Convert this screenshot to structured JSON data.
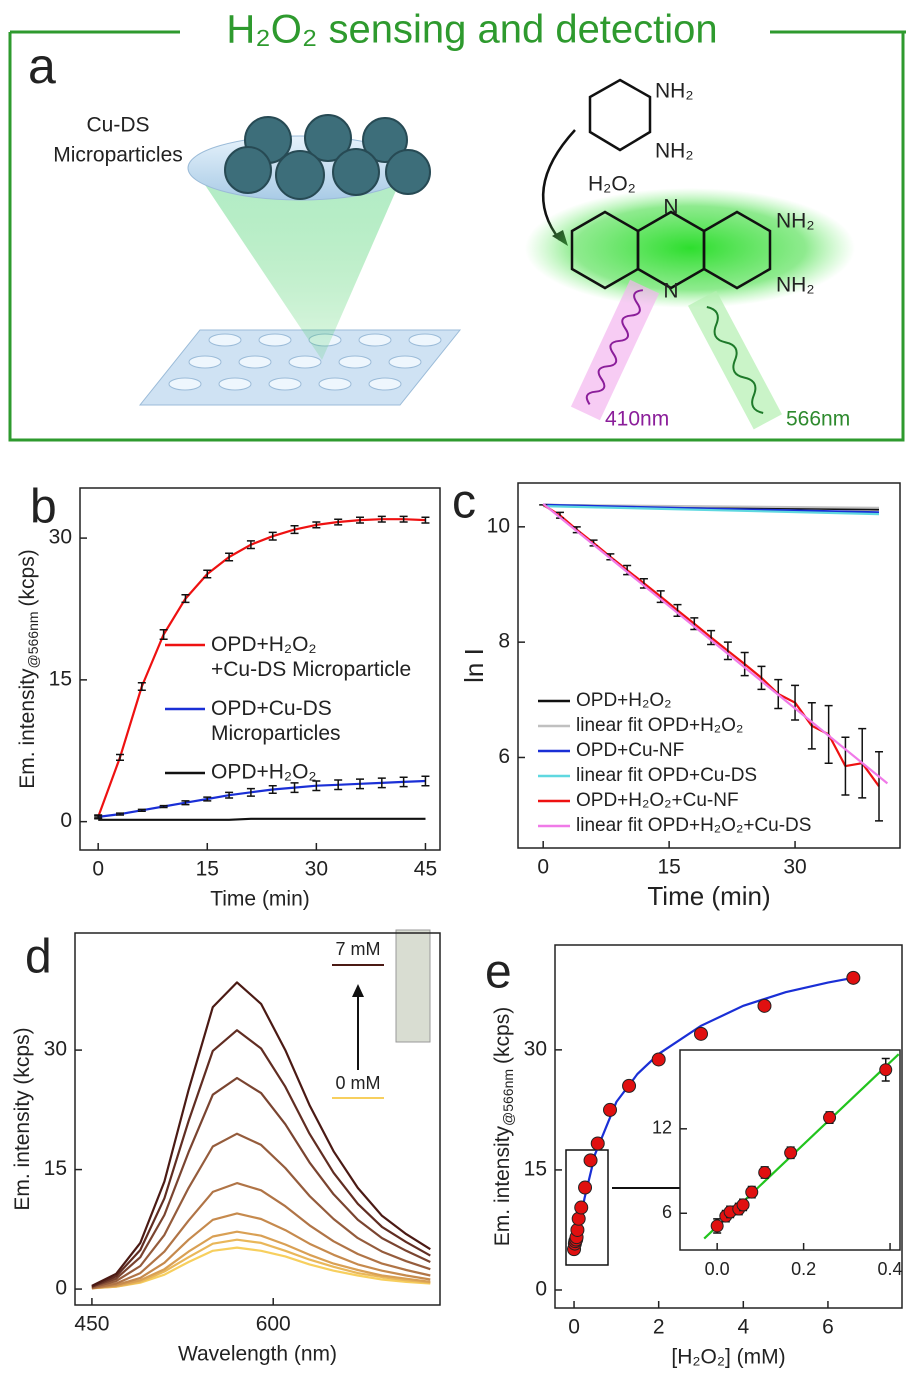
{
  "header": {
    "title": "H₂O₂ sensing and detection"
  },
  "panel_a": {
    "label": "a",
    "particle_label": [
      "Cu-DS",
      "Microparticles"
    ],
    "reagent_groups": [
      "NH₂",
      "NH₂"
    ],
    "oxidant": "H₂O₂",
    "product_groups": [
      "NH₂",
      "NH₂"
    ],
    "ring_atoms": [
      "N",
      "N"
    ],
    "excitation": "410nm",
    "emission": "566nm"
  },
  "chart_data": [
    {
      "type": "line",
      "panel": "b",
      "x_label": "Time (min)",
      "y_label": "Em. intensity",
      "y_label_sub": "@566nm",
      "y_label_unit": "(kcps)",
      "xlim": [
        -2.5,
        47
      ],
      "xticks": [
        0,
        15,
        30,
        45
      ],
      "ylim": [
        -3,
        35.3
      ],
      "yticks": [
        0,
        15,
        30
      ],
      "x": [
        0,
        3,
        6,
        9,
        12,
        15,
        18,
        21,
        24,
        27,
        30,
        33,
        36,
        39,
        42,
        45
      ],
      "series": [
        {
          "name": "OPD+H₂O₂\n+Cu-DS Microparticle",
          "color": "#ee1111",
          "values": [
            0.5,
            6.8,
            14.3,
            19.8,
            23.6,
            26.2,
            28.0,
            29.3,
            30.2,
            30.9,
            31.4,
            31.7,
            31.9,
            32.0,
            32.0,
            31.9
          ],
          "errors": [
            0.2,
            0.3,
            0.4,
            0.5,
            0.4,
            0.4,
            0.4,
            0.4,
            0.4,
            0.4,
            0.3,
            0.3,
            0.3,
            0.3,
            0.3,
            0.3
          ]
        },
        {
          "name": "OPD+Cu-DS\nMicroparticles",
          "color": "#1a2fd6",
          "values": [
            0.5,
            0.8,
            1.2,
            1.6,
            2.0,
            2.4,
            2.8,
            3.1,
            3.4,
            3.6,
            3.8,
            3.9,
            4.0,
            4.1,
            4.2,
            4.3
          ],
          "errors": [
            0.1,
            0.1,
            0.1,
            0.1,
            0.2,
            0.2,
            0.3,
            0.4,
            0.4,
            0.5,
            0.5,
            0.5,
            0.5,
            0.5,
            0.5,
            0.5
          ]
        },
        {
          "name": "OPD+H₂O₂",
          "color": "#111111",
          "values": [
            0.2,
            0.2,
            0.2,
            0.2,
            0.2,
            0.2,
            0.2,
            0.3,
            0.3,
            0.3,
            0.3,
            0.3,
            0.3,
            0.3,
            0.3,
            0.3
          ]
        }
      ]
    },
    {
      "type": "line",
      "panel": "c",
      "x_label": "Time (min)",
      "y_label": "ln I",
      "xlim": [
        -3,
        42.5
      ],
      "xticks": [
        0,
        15,
        30
      ],
      "ylim": [
        4.43,
        10.76
      ],
      "yticks": [
        6,
        8,
        10
      ],
      "x": [
        0,
        2,
        4,
        6,
        8,
        10,
        12,
        14,
        16,
        18,
        20,
        22,
        24,
        26,
        28,
        30,
        32,
        34,
        36,
        38,
        40
      ],
      "series": [
        {
          "name": "OPD+H₂O₂",
          "color": "#111111",
          "x": [
            0,
            40
          ],
          "values": [
            10.38,
            10.3
          ]
        },
        {
          "name": "linear fit OPD+H₂O₂",
          "color": "#c0c0c0",
          "x": [
            0,
            40
          ],
          "values": [
            10.38,
            10.33
          ]
        },
        {
          "name": "OPD+Cu-NF",
          "color": "#1a2fd6",
          "x": [
            0,
            40
          ],
          "values": [
            10.38,
            10.25
          ]
        },
        {
          "name": "linear fit OPD+Cu-DS",
          "color": "#5fd8e0",
          "x": [
            0,
            40
          ],
          "values": [
            10.36,
            10.22
          ]
        },
        {
          "name": "OPD+H₂O₂+Cu-NF",
          "color": "#ee1111",
          "values": [
            10.38,
            10.2,
            9.95,
            9.72,
            9.48,
            9.25,
            9.02,
            8.79,
            8.55,
            8.32,
            8.08,
            7.85,
            7.62,
            7.38,
            7.1,
            6.95,
            6.55,
            6.4,
            5.85,
            5.9,
            5.5
          ],
          "errors": [
            0,
            0.05,
            0.05,
            0.05,
            0.05,
            0.08,
            0.08,
            0.1,
            0.1,
            0.1,
            0.12,
            0.15,
            0.2,
            0.2,
            0.25,
            0.3,
            0.4,
            0.5,
            0.5,
            0.6,
            0.6
          ]
        },
        {
          "name": "linear fit OPD+H₂O₂+Cu-DS",
          "color": "#f07ae8",
          "x": [
            0,
            41
          ],
          "values": [
            10.4,
            5.55
          ]
        }
      ]
    },
    {
      "type": "line",
      "panel": "d",
      "x_label": "Wavelength (nm)",
      "y_label": "Em. intensity (kcps)",
      "xlim": [
        436,
        738
      ],
      "xticks": [
        450,
        600
      ],
      "ylim": [
        -2,
        44.7
      ],
      "yticks": [
        0,
        15,
        30
      ],
      "inset_labels": {
        "high": "7 mM",
        "low": "0 mM"
      },
      "x": [
        450,
        470,
        490,
        510,
        530,
        550,
        570,
        590,
        610,
        630,
        650,
        670,
        690,
        710,
        730
      ],
      "series": [
        {
          "color": "#f7cf5e",
          "values": [
            0.1,
            0.3,
            0.8,
            1.8,
            3.4,
            4.8,
            5.2,
            4.8,
            4.1,
            3.1,
            2.3,
            1.7,
            1.2,
            0.9,
            0.7
          ]
        },
        {
          "color": "#e9b75a",
          "values": [
            0.1,
            0.3,
            0.9,
            2.2,
            4.0,
            5.7,
            6.2,
            5.8,
            4.8,
            3.7,
            2.8,
            2.0,
            1.5,
            1.1,
            0.8
          ]
        },
        {
          "color": "#d9a054",
          "values": [
            0.1,
            0.4,
            1.1,
            2.5,
            4.7,
            6.6,
            7.2,
            6.7,
            5.6,
            4.3,
            3.2,
            2.4,
            1.7,
            1.3,
            0.9
          ]
        },
        {
          "color": "#c68a4d",
          "values": [
            0.1,
            0.5,
            1.4,
            3.3,
            6.2,
            8.7,
            9.5,
            8.8,
            7.4,
            5.7,
            4.3,
            3.1,
            2.3,
            1.7,
            1.2
          ]
        },
        {
          "color": "#b07446",
          "values": [
            0.1,
            0.7,
            2.0,
            4.7,
            8.6,
            12.2,
            13.3,
            12.4,
            10.4,
            8.0,
            6.0,
            4.4,
            3.2,
            2.4,
            1.7
          ]
        },
        {
          "color": "#955c3c",
          "values": [
            0.2,
            1.0,
            2.9,
            6.8,
            12.7,
            17.9,
            19.5,
            18.1,
            15.2,
            11.7,
            8.8,
            6.4,
            4.7,
            3.5,
            2.5
          ]
        },
        {
          "color": "#7a4430",
          "values": [
            0.3,
            1.3,
            4.0,
            9.3,
            17.2,
            24.4,
            26.5,
            24.6,
            20.7,
            15.9,
            11.9,
            8.7,
            6.4,
            4.8,
            3.4
          ]
        },
        {
          "color": "#612d22",
          "values": [
            0.3,
            1.6,
            4.9,
            11.4,
            21.1,
            29.9,
            32.5,
            30.2,
            25.4,
            19.5,
            14.6,
            10.7,
            7.8,
            5.9,
            4.2
          ]
        },
        {
          "color": "#4b1a14",
          "values": [
            0.4,
            1.9,
            5.8,
            13.5,
            25.0,
            35.4,
            38.5,
            35.8,
            30.0,
            23.1,
            17.3,
            12.7,
            9.2,
            6.9,
            5.0
          ]
        }
      ]
    },
    {
      "type": "scatter",
      "panel": "e",
      "x_label": "[H₂O₂] (mM)",
      "y_label": "Em. intensity",
      "y_label_sub": "@566nm",
      "y_label_unit": "(kcps)",
      "xlim": [
        -0.45,
        7.75
      ],
      "xticks": [
        0,
        2,
        4,
        6
      ],
      "ylim": [
        -2.25,
        43.1
      ],
      "yticks": [
        0,
        15,
        30
      ],
      "color": "#e01010",
      "x": [
        0,
        0.02,
        0.03,
        0.05,
        0.06,
        0.08,
        0.11,
        0.17,
        0.26,
        0.39,
        0.56,
        0.85,
        1.3,
        2,
        3,
        4.5,
        6.6
      ],
      "values": [
        5.1,
        5.8,
        6.1,
        6.3,
        6.6,
        7.5,
        8.9,
        10.3,
        12.8,
        16.2,
        18.3,
        22.5,
        25.5,
        28.8,
        32,
        35.5,
        39
      ],
      "errors": [
        0.5,
        0.5,
        0.5,
        0.5,
        0.5,
        0.5,
        0.5,
        0.5,
        0.5,
        0.5,
        0.5,
        0.5,
        0.5,
        0.5,
        0.5,
        0.6,
        0.6
      ],
      "fit": {
        "color": "#1a2fd6",
        "x": [
          0,
          0.25,
          0.5,
          1,
          1.5,
          2,
          3,
          4,
          5,
          6,
          6.6
        ],
        "values": [
          5,
          11.5,
          17,
          23.5,
          27,
          29.5,
          33,
          35.5,
          37.2,
          38.4,
          39
        ]
      }
    },
    {
      "type": "scatter",
      "xlim": [
        -0.086,
        0.423
      ],
      "xticks": [
        {
          "value": 0,
          "label": "0.0"
        },
        0.2,
        0.4
      ],
      "ylim": [
        3.39,
        17.6
      ],
      "yticks": [
        6,
        12
      ],
      "color": "#e01010",
      "x": [
        0,
        0.02,
        0.03,
        0.05,
        0.06,
        0.08,
        0.11,
        0.17,
        0.26,
        0.39
      ],
      "values": [
        5.1,
        5.8,
        6.1,
        6.3,
        6.6,
        7.5,
        8.9,
        10.3,
        12.8,
        16.2
      ],
      "errors": [
        0.5,
        0.4,
        0.4,
        0.4,
        0.4,
        0.4,
        0.4,
        0.4,
        0.4,
        0.8
      ],
      "fit": {
        "color": "#22c41e",
        "x": [
          -0.03,
          0.42
        ],
        "values": [
          4.2,
          17.3
        ]
      }
    }
  ]
}
